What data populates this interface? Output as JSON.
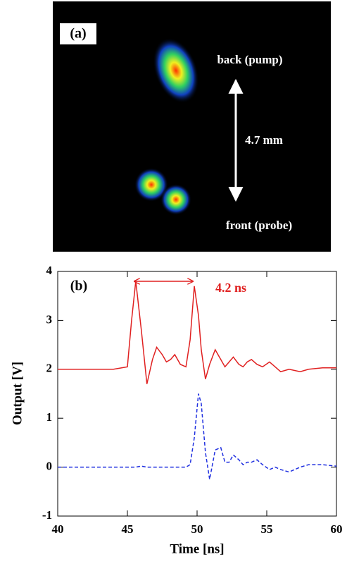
{
  "panel_a": {
    "label": "(a)",
    "back": "back (pump)",
    "distance": "4.7 mm",
    "front": "front (probe)"
  },
  "chart_data": {
    "type": "line",
    "panel_label": "(b)",
    "annotation": "4.2 ns",
    "xlabel": "Time [ns]",
    "ylabel": "Output [V]",
    "xlim": [
      40,
      60
    ],
    "xticks": [
      40,
      45,
      50,
      55,
      60
    ],
    "ylim": [
      -1,
      4
    ],
    "yticks": [
      -1,
      0,
      1,
      2,
      3,
      4
    ],
    "x": [
      40,
      44,
      45,
      45.3,
      45.6,
      46,
      46.4,
      46.8,
      47.1,
      47.5,
      47.8,
      48.1,
      48.4,
      48.8,
      49.2,
      49.5,
      49.8,
      50.1,
      50.3,
      50.6,
      50.9,
      51.3,
      51.7,
      52,
      52.3,
      52.6,
      53,
      53.3,
      53.6,
      53.9,
      54.3,
      54.7,
      55.2,
      55.6,
      56,
      56.6,
      57.4,
      58,
      59,
      60
    ],
    "series": [
      {
        "color": "#e02020",
        "dash": false,
        "values": [
          2.0,
          2.0,
          2.05,
          3.0,
          3.8,
          2.8,
          1.7,
          2.2,
          2.45,
          2.3,
          2.15,
          2.2,
          2.3,
          2.1,
          2.05,
          2.6,
          3.7,
          3.1,
          2.4,
          1.8,
          2.1,
          2.4,
          2.2,
          2.05,
          2.15,
          2.25,
          2.1,
          2.05,
          2.15,
          2.2,
          2.1,
          2.05,
          2.15,
          2.05,
          1.95,
          2.0,
          1.95,
          2.0,
          2.03,
          2.03
        ]
      },
      {
        "color": "#2030e0",
        "dash": true,
        "values": [
          0,
          0,
          0,
          0,
          0,
          0.02,
          0,
          0,
          0,
          0,
          0,
          0,
          0,
          0,
          0,
          0.05,
          0.6,
          1.5,
          1.3,
          0.3,
          -0.25,
          0.35,
          0.4,
          0.1,
          0.1,
          0.25,
          0.15,
          0.05,
          0.1,
          0.1,
          0.15,
          0.05,
          -0.05,
          0,
          -0.05,
          -0.1,
          0,
          0.05,
          0.05,
          0.02
        ]
      }
    ]
  }
}
